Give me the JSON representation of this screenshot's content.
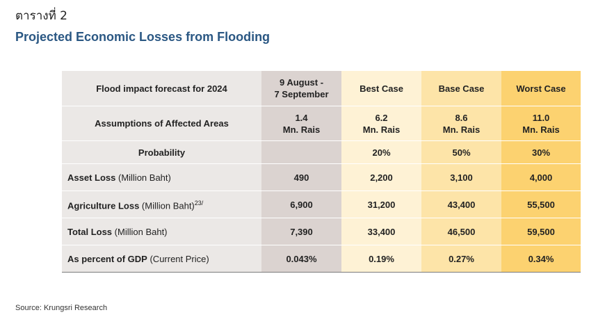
{
  "table_label": "ตารางที่ 2",
  "title": "Projected Economic Losses from Flooding",
  "header": {
    "row_label": "Flood impact forecast for 2024",
    "actual_line1": "9 August -",
    "actual_line2": "7 September",
    "best": "Best Case",
    "base": "Base Case",
    "worst": "Worst Case"
  },
  "assumptions": {
    "label": "Assumptions of Affected Areas",
    "actual": [
      "1.4",
      "Mn. Rais"
    ],
    "best": [
      "6.2",
      "Mn. Rais"
    ],
    "base": [
      "8.6",
      "Mn. Rais"
    ],
    "worst": [
      "11.0",
      "Mn. Rais"
    ]
  },
  "probability": {
    "label": "Probability",
    "actual": "",
    "best": "20%",
    "base": "50%",
    "worst": "30%"
  },
  "rows": [
    {
      "label": "Asset Loss",
      "unit": " (Million Baht)",
      "sup": "",
      "values": [
        "490",
        "2,200",
        "3,100",
        "4,000"
      ]
    },
    {
      "label": "Agriculture Loss",
      "unit": " (Million Baht)",
      "sup": "23/",
      "values": [
        "6,900",
        "31,200",
        "43,400",
        "55,500"
      ]
    },
    {
      "label": "Total Loss",
      "unit": " (Million Baht)",
      "sup": "",
      "values": [
        "7,390",
        "33,400",
        "46,500",
        "59,500"
      ]
    },
    {
      "label": "As percent of GDP",
      "unit": " (Current Price)",
      "sup": "",
      "values": [
        "0.043%",
        "0.19%",
        "0.27%",
        "0.34%"
      ]
    }
  ],
  "source": "Source: Krungsri Research",
  "colors": {
    "title": "#2a5783",
    "label_bg": "#ebe8e6",
    "actual_bg": "#dbd3d0",
    "best_bg": "#fef2d5",
    "base_bg": "#fde4a8",
    "worst_bg": "#fcd270"
  }
}
